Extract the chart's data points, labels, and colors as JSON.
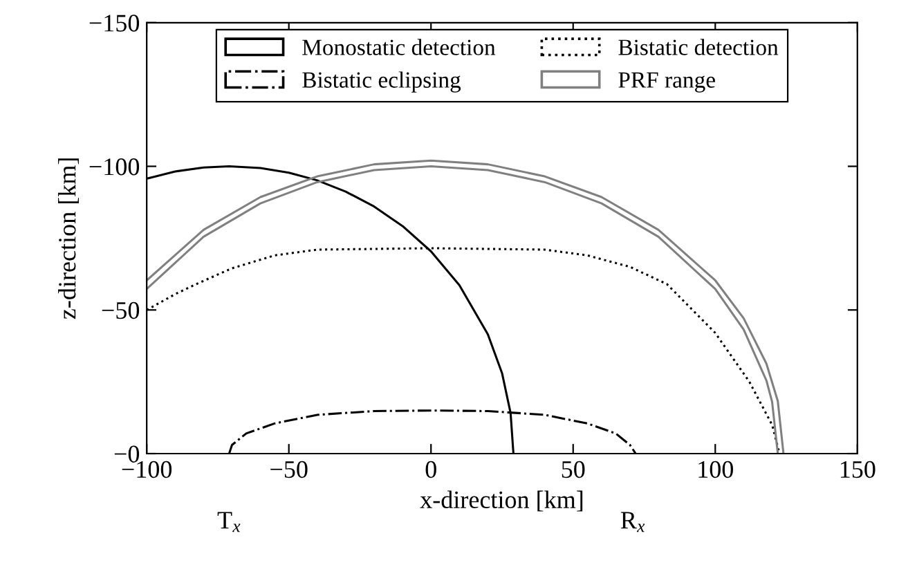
{
  "chart_data": {
    "type": "line",
    "xlabel": "x-direction [km]",
    "ylabel": "z-direction [km]",
    "xlim": [
      -100,
      150
    ],
    "ylim": [
      0,
      -150
    ],
    "xticks": [
      {
        "value": -100,
        "label": "−100"
      },
      {
        "value": -50,
        "label": "−50"
      },
      0,
      50,
      100,
      150
    ],
    "yticks": [
      {
        "value": 0,
        "label": "−0"
      },
      {
        "value": -50,
        "label": "−50"
      },
      {
        "value": -100,
        "label": "−100"
      },
      {
        "value": -150,
        "label": "−150"
      }
    ],
    "grid": false,
    "legend": "top",
    "marker": "none",
    "annotations": [
      {
        "text": "T$_{x}$",
        "x": -71,
        "y": 0
      },
      {
        "text": "R$_{x}$",
        "x": 71,
        "y": 0
      }
    ],
    "series": [
      {
        "name": "Monostatic detection",
        "color": "#000000",
        "line_style": "solid",
        "x": [
          -100,
          -90,
          -80,
          -71,
          -60,
          -50,
          -40,
          -30,
          -20,
          -10,
          0,
          10,
          20,
          25,
          28,
          29
        ],
        "values": [
          -95.7,
          -98.2,
          -99.6,
          -100,
          -99.4,
          -97.8,
          -95.1,
          -91.2,
          -86.0,
          -79.2,
          -70.4,
          -58.6,
          -41.5,
          -28.0,
          -14.1,
          0
        ]
      },
      {
        "name": "Bistatic detection",
        "color": "#000000",
        "line_style": "dotted",
        "x": [
          -100,
          -90,
          -82.6,
          -70,
          -55,
          -40,
          0,
          40,
          55,
          70,
          83,
          92,
          100,
          112,
          120,
          122.6
        ],
        "values": [
          -50,
          -55.5,
          -59,
          -64.5,
          -69,
          -71,
          -71.5,
          -71,
          -69,
          -65,
          -59,
          -50,
          -42,
          -25,
          -10,
          0
        ]
      },
      {
        "name": "Bistatic eclipsing",
        "color": "#000000",
        "line_style": "dashdot",
        "x": [
          -71,
          -70,
          -65,
          -55,
          -40,
          -20,
          0,
          20,
          40,
          55,
          65,
          70,
          72
        ],
        "values": [
          0,
          -3,
          -7,
          -10.5,
          -13.5,
          -14.8,
          -15,
          -14.8,
          -13.5,
          -10.5,
          -7,
          -3,
          0
        ]
      },
      {
        "name": "PRF range",
        "color": "#808080",
        "line_style": "solid",
        "x": [
          -100,
          -80,
          -60,
          -40,
          -20,
          0,
          20,
          40,
          60,
          80,
          100,
          110,
          118,
          122,
          124
        ],
        "values": [
          -60.3,
          -77.9,
          -89.3,
          -96.5,
          -100.7,
          -102,
          -100.7,
          -96.5,
          -89.3,
          -77.9,
          -60.3,
          -47.1,
          -31.3,
          -18.3,
          0
        ]
      },
      {
        "color": "#808080",
        "line_style": "solid",
        "x": [
          -100,
          -80,
          -60,
          -40,
          -20,
          0,
          20,
          40,
          60,
          80,
          100,
          110,
          118,
          120,
          122
        ],
        "values": [
          -57.3,
          -75.5,
          -87.1,
          -94.5,
          -98.7,
          -100,
          -98.7,
          -94.5,
          -87.1,
          -75.5,
          -57.3,
          -43.2,
          -25.4,
          -18.0,
          0
        ]
      }
    ]
  }
}
